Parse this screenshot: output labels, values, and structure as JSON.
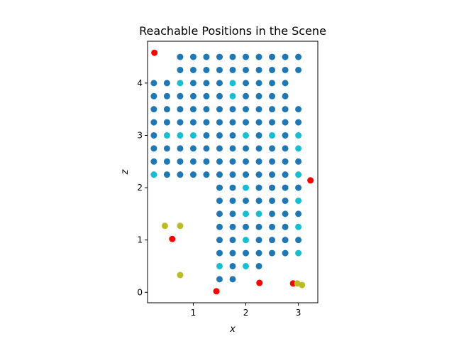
{
  "chart_data": {
    "type": "scatter",
    "title": "Reachable Positions in the Scene",
    "xlabel": "x",
    "ylabel": "z",
    "xlim": [
      0.13,
      3.37
    ],
    "ylim": [
      -0.2,
      4.8
    ],
    "xticks": [
      1,
      2,
      3
    ],
    "yticks": [
      0,
      1,
      2,
      3,
      4
    ],
    "grid": false,
    "colors": {
      "reachable": "#1f77b4",
      "teal": "#17becf",
      "red": "#ff0000",
      "olive": "#bcbd22"
    },
    "series": [
      {
        "color_key": "reachable",
        "points": [
          [
            0.75,
            4.5
          ],
          [
            1.0,
            4.5
          ],
          [
            1.25,
            4.5
          ],
          [
            1.5,
            4.5
          ],
          [
            1.75,
            4.5
          ],
          [
            2.0,
            4.5
          ],
          [
            2.25,
            4.5
          ],
          [
            2.5,
            4.5
          ],
          [
            2.75,
            4.5
          ],
          [
            3.0,
            4.5
          ],
          [
            0.75,
            4.25
          ],
          [
            1.0,
            4.25
          ],
          [
            1.25,
            4.25
          ],
          [
            1.5,
            4.25
          ],
          [
            1.75,
            4.25
          ],
          [
            2.0,
            4.25
          ],
          [
            2.25,
            4.25
          ],
          [
            2.5,
            4.25
          ],
          [
            2.75,
            4.25
          ],
          [
            3.0,
            4.25
          ],
          [
            0.25,
            4.0
          ],
          [
            0.5,
            4.0
          ],
          [
            1.0,
            4.0
          ],
          [
            1.25,
            4.0
          ],
          [
            1.5,
            4.0
          ],
          [
            2.0,
            4.0
          ],
          [
            2.25,
            4.0
          ],
          [
            2.5,
            4.0
          ],
          [
            2.75,
            4.0
          ],
          [
            0.25,
            3.75
          ],
          [
            0.5,
            3.75
          ],
          [
            0.75,
            3.75
          ],
          [
            1.0,
            3.75
          ],
          [
            1.25,
            3.75
          ],
          [
            1.5,
            3.75
          ],
          [
            2.0,
            3.75
          ],
          [
            2.25,
            3.75
          ],
          [
            2.5,
            3.75
          ],
          [
            2.75,
            3.75
          ],
          [
            0.25,
            3.5
          ],
          [
            0.5,
            3.5
          ],
          [
            0.75,
            3.5
          ],
          [
            1.0,
            3.5
          ],
          [
            1.25,
            3.5
          ],
          [
            1.5,
            3.5
          ],
          [
            1.75,
            3.5
          ],
          [
            2.0,
            3.5
          ],
          [
            2.25,
            3.5
          ],
          [
            2.5,
            3.5
          ],
          [
            2.75,
            3.5
          ],
          [
            3.0,
            3.5
          ],
          [
            0.25,
            3.25
          ],
          [
            0.5,
            3.25
          ],
          [
            0.75,
            3.25
          ],
          [
            1.0,
            3.25
          ],
          [
            1.25,
            3.25
          ],
          [
            1.5,
            3.25
          ],
          [
            1.75,
            3.25
          ],
          [
            2.0,
            3.25
          ],
          [
            2.25,
            3.25
          ],
          [
            2.5,
            3.25
          ],
          [
            2.75,
            3.25
          ],
          [
            3.0,
            3.25
          ],
          [
            0.25,
            3.0
          ],
          [
            1.25,
            3.0
          ],
          [
            1.5,
            3.0
          ],
          [
            1.75,
            3.0
          ],
          [
            2.25,
            3.0
          ],
          [
            2.75,
            3.0
          ],
          [
            0.25,
            2.75
          ],
          [
            0.5,
            2.75
          ],
          [
            0.75,
            2.75
          ],
          [
            1.0,
            2.75
          ],
          [
            1.25,
            2.75
          ],
          [
            1.5,
            2.75
          ],
          [
            1.75,
            2.75
          ],
          [
            2.0,
            2.75
          ],
          [
            2.25,
            2.75
          ],
          [
            2.5,
            2.75
          ],
          [
            2.75,
            2.75
          ],
          [
            0.25,
            2.5
          ],
          [
            0.5,
            2.5
          ],
          [
            0.75,
            2.5
          ],
          [
            1.0,
            2.5
          ],
          [
            1.25,
            2.5
          ],
          [
            1.5,
            2.5
          ],
          [
            1.75,
            2.5
          ],
          [
            2.0,
            2.5
          ],
          [
            2.25,
            2.5
          ],
          [
            2.5,
            2.5
          ],
          [
            2.75,
            2.5
          ],
          [
            3.0,
            2.5
          ],
          [
            0.5,
            2.25
          ],
          [
            0.75,
            2.25
          ],
          [
            1.0,
            2.25
          ],
          [
            1.25,
            2.25
          ],
          [
            1.5,
            2.25
          ],
          [
            1.75,
            2.25
          ],
          [
            2.0,
            2.25
          ],
          [
            2.25,
            2.25
          ],
          [
            2.5,
            2.25
          ],
          [
            2.75,
            2.25
          ],
          [
            1.5,
            2.0
          ],
          [
            1.75,
            2.0
          ],
          [
            2.25,
            2.0
          ],
          [
            2.5,
            2.0
          ],
          [
            2.75,
            2.0
          ],
          [
            3.0,
            2.0
          ],
          [
            1.5,
            1.75
          ],
          [
            1.75,
            1.75
          ],
          [
            2.0,
            1.75
          ],
          [
            2.25,
            1.75
          ],
          [
            2.5,
            1.75
          ],
          [
            2.75,
            1.75
          ],
          [
            1.5,
            1.5
          ],
          [
            1.75,
            1.5
          ],
          [
            2.5,
            1.5
          ],
          [
            2.75,
            1.5
          ],
          [
            3.0,
            1.5
          ],
          [
            1.5,
            1.25
          ],
          [
            1.75,
            1.25
          ],
          [
            2.0,
            1.25
          ],
          [
            2.25,
            1.25
          ],
          [
            2.5,
            1.25
          ],
          [
            2.75,
            1.25
          ],
          [
            1.5,
            1.0
          ],
          [
            1.75,
            1.0
          ],
          [
            2.25,
            1.0
          ],
          [
            2.5,
            1.0
          ],
          [
            2.75,
            1.0
          ],
          [
            3.0,
            1.0
          ],
          [
            1.5,
            0.75
          ],
          [
            1.75,
            0.75
          ],
          [
            2.0,
            0.75
          ],
          [
            2.25,
            0.75
          ],
          [
            2.5,
            0.75
          ],
          [
            2.75,
            0.75
          ],
          [
            1.75,
            0.5
          ],
          [
            2.25,
            0.5
          ],
          [
            1.5,
            0.25
          ],
          [
            1.75,
            0.25
          ]
        ]
      },
      {
        "color_key": "teal",
        "points": [
          [
            0.75,
            4.0
          ],
          [
            1.75,
            4.0
          ],
          [
            1.75,
            3.75
          ],
          [
            0.5,
            3.0
          ],
          [
            0.75,
            3.0
          ],
          [
            1.0,
            3.0
          ],
          [
            2.0,
            3.0
          ],
          [
            2.5,
            3.0
          ],
          [
            3.0,
            3.0
          ],
          [
            3.0,
            2.75
          ],
          [
            0.25,
            2.25
          ],
          [
            3.0,
            2.25
          ],
          [
            2.0,
            2.0
          ],
          [
            3.0,
            1.75
          ],
          [
            2.0,
            1.5
          ],
          [
            2.25,
            1.5
          ],
          [
            3.0,
            1.25
          ],
          [
            2.0,
            1.0
          ],
          [
            3.0,
            0.75
          ],
          [
            1.5,
            0.5
          ],
          [
            2.0,
            0.5
          ]
        ]
      },
      {
        "color_key": "red",
        "points": [
          [
            0.26,
            4.58
          ],
          [
            3.23,
            2.14
          ],
          [
            0.6,
            1.02
          ],
          [
            1.44,
            0.02
          ],
          [
            2.26,
            0.18
          ],
          [
            2.9,
            0.17
          ]
        ]
      },
      {
        "color_key": "olive",
        "points": [
          [
            0.46,
            1.27
          ],
          [
            0.75,
            1.27
          ],
          [
            0.75,
            0.33
          ],
          [
            2.98,
            0.17
          ],
          [
            3.07,
            0.14
          ]
        ]
      }
    ]
  }
}
